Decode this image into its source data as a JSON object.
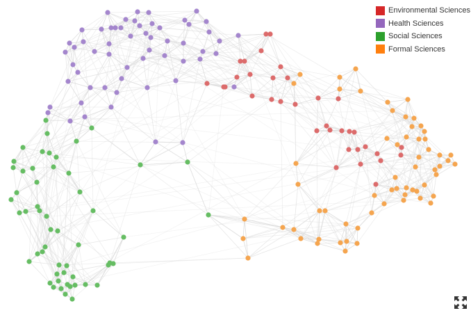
{
  "legend": {
    "items": [
      {
        "label": "Environmental Sciences",
        "color": "#d62728"
      },
      {
        "label": "Health Sciences",
        "color": "#9467bd"
      },
      {
        "label": "Social Sciences",
        "color": "#2ca02c"
      },
      {
        "label": "Formal Sciences",
        "color": "#ff7f0e"
      }
    ]
  },
  "graph": {
    "colors": {
      "Environmental Sciences": "#dc6b6b",
      "Health Sciences": "#a486cd",
      "Social Sciences": "#66bd63",
      "Formal Sciences": "#f5a54f",
      "edge": "#dddddd"
    }
  },
  "toolbar": {
    "expand_icon": "expand-icon"
  }
}
